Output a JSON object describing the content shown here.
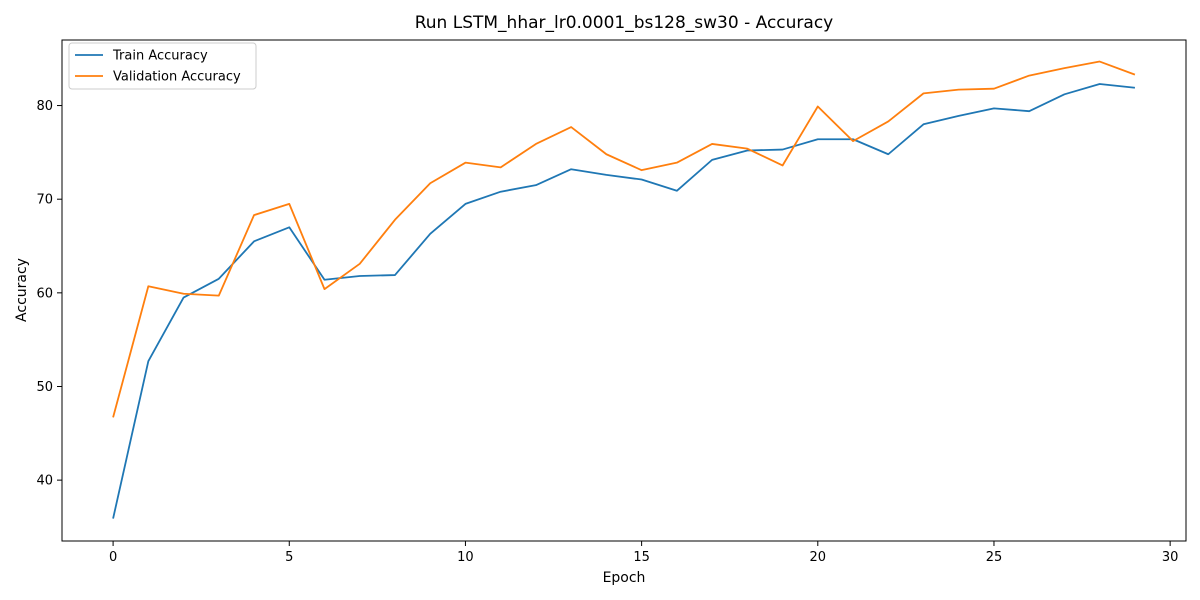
{
  "chart_data": {
    "type": "line",
    "title": "Run LSTM_hhar_lr0.0001_bs128_sw30 - Accuracy",
    "xlabel": "Epoch",
    "ylabel": "Accuracy",
    "xlim": [
      -1.45,
      30.45
    ],
    "ylim": [
      33.5,
      87.0
    ],
    "xticks": [
      0,
      5,
      10,
      15,
      20,
      25,
      30
    ],
    "yticks": [
      40,
      50,
      60,
      70,
      80
    ],
    "grid": false,
    "legend_position": "upper-left",
    "x": [
      0,
      1,
      2,
      3,
      4,
      5,
      6,
      7,
      8,
      9,
      10,
      11,
      12,
      13,
      14,
      15,
      16,
      17,
      18,
      19,
      20,
      21,
      22,
      23,
      24,
      25,
      26,
      27,
      28,
      29
    ],
    "series": [
      {
        "name": "Train Accuracy",
        "color": "#1f77b4",
        "values": [
          35.9,
          52.7,
          59.5,
          61.5,
          65.5,
          67.0,
          61.4,
          61.8,
          61.9,
          66.3,
          69.5,
          70.8,
          71.5,
          73.2,
          72.6,
          72.1,
          70.9,
          74.2,
          75.2,
          75.3,
          76.4,
          76.4,
          74.8,
          78.0,
          78.9,
          79.7,
          79.4,
          81.2,
          82.3,
          81.9
        ]
      },
      {
        "name": "Validation Accuracy",
        "color": "#ff7f0e",
        "values": [
          46.7,
          60.7,
          59.9,
          59.7,
          68.3,
          69.5,
          60.4,
          63.1,
          67.8,
          71.7,
          73.9,
          73.4,
          75.9,
          77.7,
          74.8,
          73.1,
          73.9,
          75.9,
          75.4,
          73.6,
          79.9,
          76.2,
          78.3,
          81.3,
          81.7,
          81.8,
          83.2,
          84.0,
          84.7,
          83.3
        ]
      }
    ]
  }
}
